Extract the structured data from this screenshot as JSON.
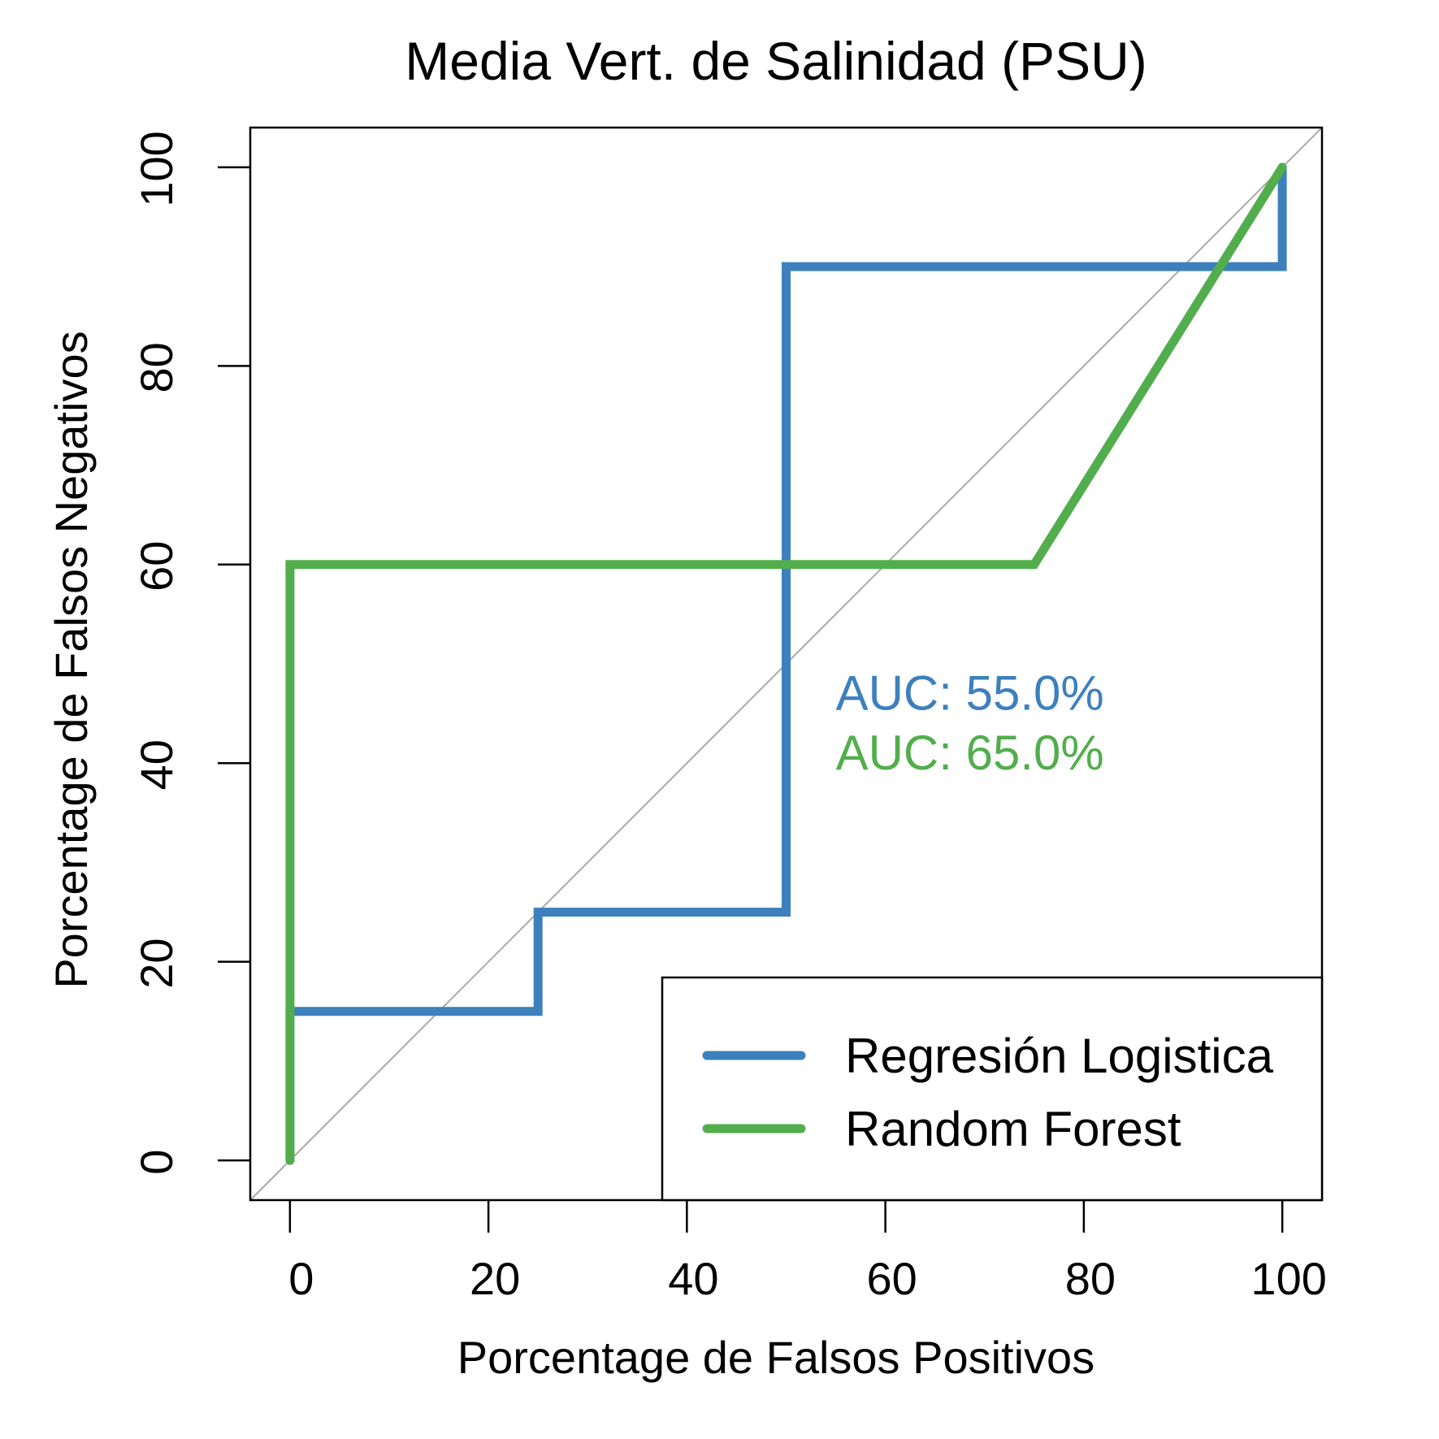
{
  "chart_data": {
    "type": "line",
    "title": "Media Vert. de Salinidad (PSU)",
    "xlabel": "Porcentage de Falsos Positivos",
    "ylabel": "Porcentage de Falsos Negativos",
    "xlim": [
      -4,
      104
    ],
    "ylim": [
      -4,
      104
    ],
    "x_ticks": [
      0,
      20,
      40,
      60,
      80,
      100
    ],
    "y_ticks": [
      0,
      20,
      40,
      60,
      80,
      100
    ],
    "grid": false,
    "reference_line": {
      "x": [
        -4,
        104
      ],
      "y": [
        -4,
        104
      ],
      "color": "#aaaaaa"
    },
    "series": [
      {
        "name": "Regresión Logistica",
        "color": "#3d80bd",
        "x": [
          0,
          0,
          25,
          25,
          50,
          50,
          100,
          100
        ],
        "y": [
          0,
          15,
          15,
          25,
          25,
          90,
          90,
          100
        ]
      },
      {
        "name": "Random Forest",
        "color": "#52ae4d",
        "x": [
          0,
          0,
          75,
          100
        ],
        "y": [
          0,
          60,
          60,
          100
        ]
      }
    ],
    "annotations": [
      {
        "text": "AUC: 55.0%",
        "x": 55,
        "y": 47,
        "color": "#3d80bd"
      },
      {
        "text": "AUC: 65.0%",
        "x": 55,
        "y": 41,
        "color": "#52ae4d"
      }
    ],
    "legend": {
      "position": "bottom-right",
      "entries": [
        "Regresión Logistica",
        "Random Forest"
      ]
    }
  }
}
